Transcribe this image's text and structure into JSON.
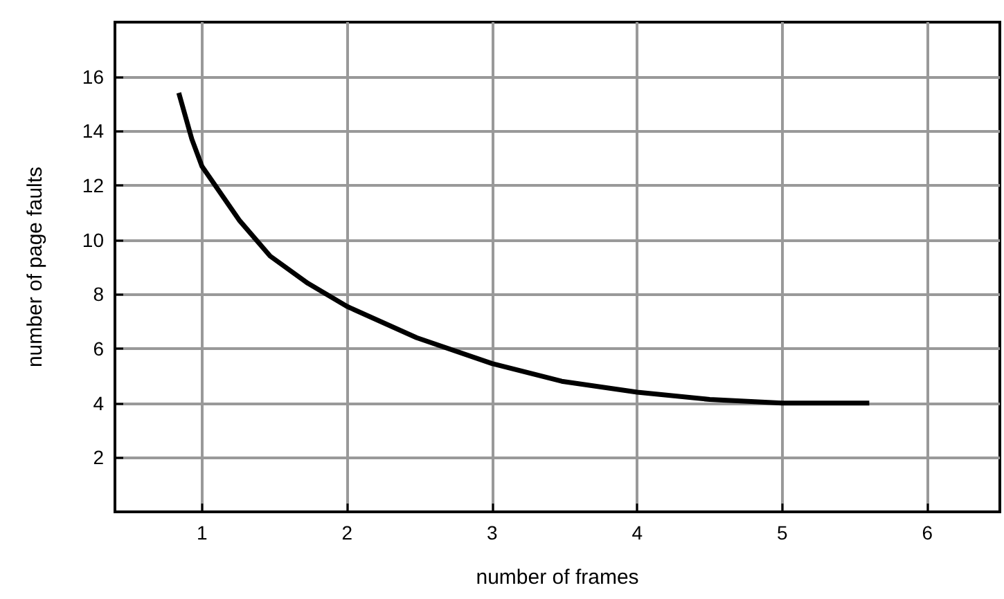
{
  "chart_data": {
    "type": "line",
    "xlabel": "number of frames",
    "ylabel": "number of page faults",
    "x": [
      0.84,
      0.93,
      1.0,
      1.26,
      1.47,
      1.73,
      2.0,
      2.48,
      3.0,
      3.48,
      4.0,
      4.5,
      5.0,
      5.6
    ],
    "series": [
      {
        "color": "#000000",
        "values": [
          15.4,
          13.7,
          12.7,
          10.7,
          9.4,
          8.4,
          7.55,
          6.4,
          5.45,
          4.8,
          4.4,
          4.13,
          4.0,
          4.0
        ]
      }
    ],
    "xlim": [
      0.4,
      6.5
    ],
    "xticks": [
      1,
      2,
      3,
      4,
      5,
      6
    ],
    "ylim": [
      0,
      18
    ],
    "yticks": [
      2,
      4,
      6,
      8,
      10,
      12,
      14,
      16
    ],
    "grid": true,
    "marker": "none",
    "line_style": "solid"
  }
}
